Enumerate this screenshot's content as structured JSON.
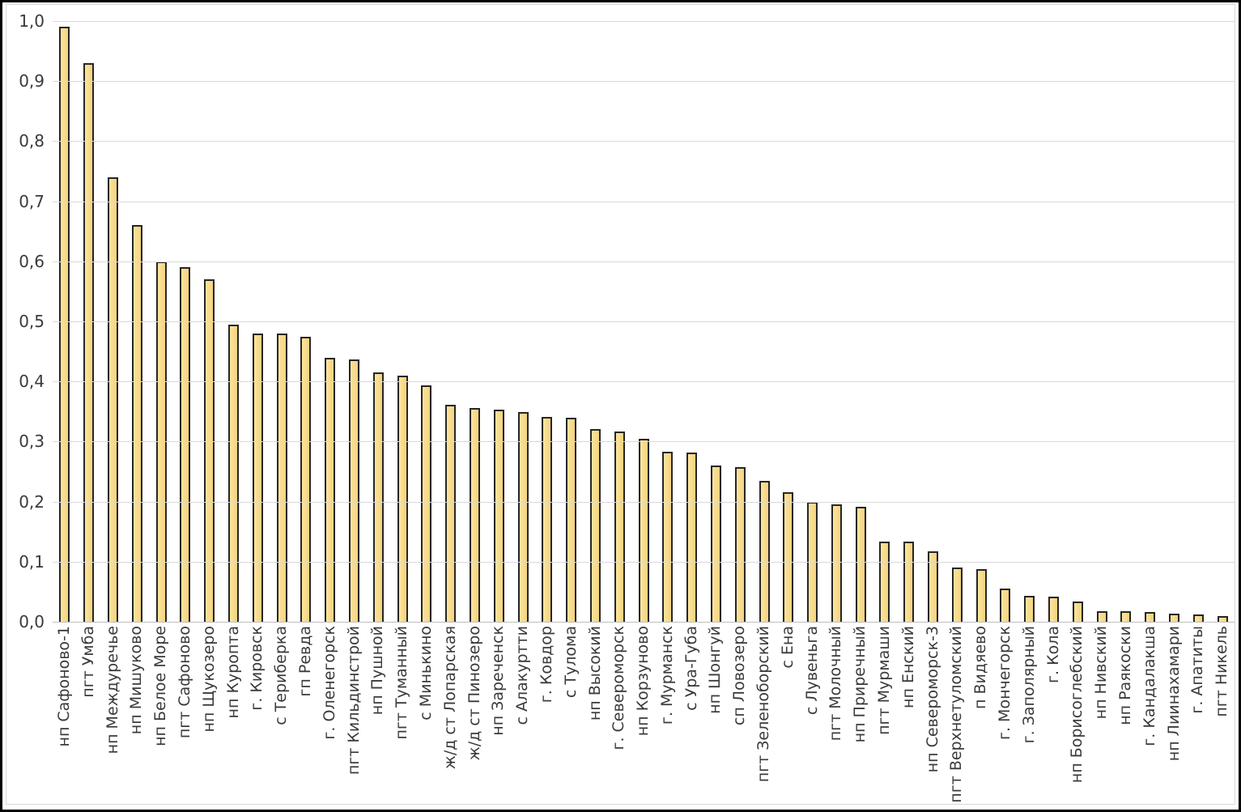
{
  "chart_data": {
    "type": "bar",
    "title": "",
    "xlabel": "",
    "ylabel": "",
    "grid": true,
    "legend": "none",
    "ylim": [
      0,
      1
    ],
    "ytick_values": [
      0,
      0.1,
      0.2,
      0.3,
      0.4,
      0.5,
      0.6,
      0.7,
      0.8,
      0.9,
      1.0
    ],
    "ytick_labels": [
      "0,0",
      "0,1",
      "0,2",
      "0,3",
      "0,4",
      "0,5",
      "0,6",
      "0,7",
      "0,8",
      "0,9",
      "1,0"
    ],
    "categories": [
      "нп Сафоново-1",
      "пгт Умба",
      "нп Междуречье",
      "нп Мишуково",
      "нп Белое Море",
      "пгт Сафоново",
      "нп Щукозеро",
      "нп Куропта",
      "г. Кировск",
      "с Териберка",
      "гп Ревда",
      "г. Оленегорск",
      "пгт Кильдинстрой",
      "нп Пушной",
      "пгт Туманный",
      "с Минькино",
      "ж/д ст Лопарская",
      "ж/д ст Пинозеро",
      "нп Зареченск",
      "с Алакуртти",
      "г. Ковдор",
      "с Тулома",
      "нп Высокий",
      "г. Североморск",
      "нп Корзуново",
      "г. Мурманск",
      "с Ура-Губа",
      "нп Шонгуй",
      "сп Ловозеро",
      "пгт Зеленоборский",
      "с Ена",
      "с Лувеньга",
      "пгт Молочный",
      "нп Приречный",
      "пгт Мурмаши",
      "нп Енский",
      "нп Североморск-3",
      "пгт Верхнетуломский",
      "п Видяево",
      "г. Мончегорск",
      "г. Заполярный",
      "г. Кола",
      "нп Борисоглебский",
      "нп Нивский",
      "нп Раякоски",
      "г. Кандалакша",
      "нп Лиинахамари",
      "г. Апатиты",
      "пгт Никель"
    ],
    "values": [
      0.99,
      0.93,
      0.74,
      0.66,
      0.6,
      0.59,
      0.57,
      0.495,
      0.48,
      0.48,
      0.475,
      0.44,
      0.437,
      0.415,
      0.41,
      0.393,
      0.361,
      0.356,
      0.353,
      0.349,
      0.341,
      0.339,
      0.321,
      0.317,
      0.305,
      0.283,
      0.281,
      0.26,
      0.258,
      0.235,
      0.216,
      0.2,
      0.195,
      0.192,
      0.134,
      0.133,
      0.117,
      0.09,
      0.088,
      0.055,
      0.043,
      0.042,
      0.034,
      0.018,
      0.017,
      0.016,
      0.013,
      0.012,
      0.009
    ],
    "colors": {
      "bar_fill": "#f8db8c",
      "bar_border": "#262626",
      "gridline": "#d9d9d9",
      "axis_line": "#bfbfbf",
      "text": "#3a3a3a",
      "page_border": "#000000",
      "chart_frame": "#d9d9d9",
      "background": "#ffffff"
    }
  }
}
